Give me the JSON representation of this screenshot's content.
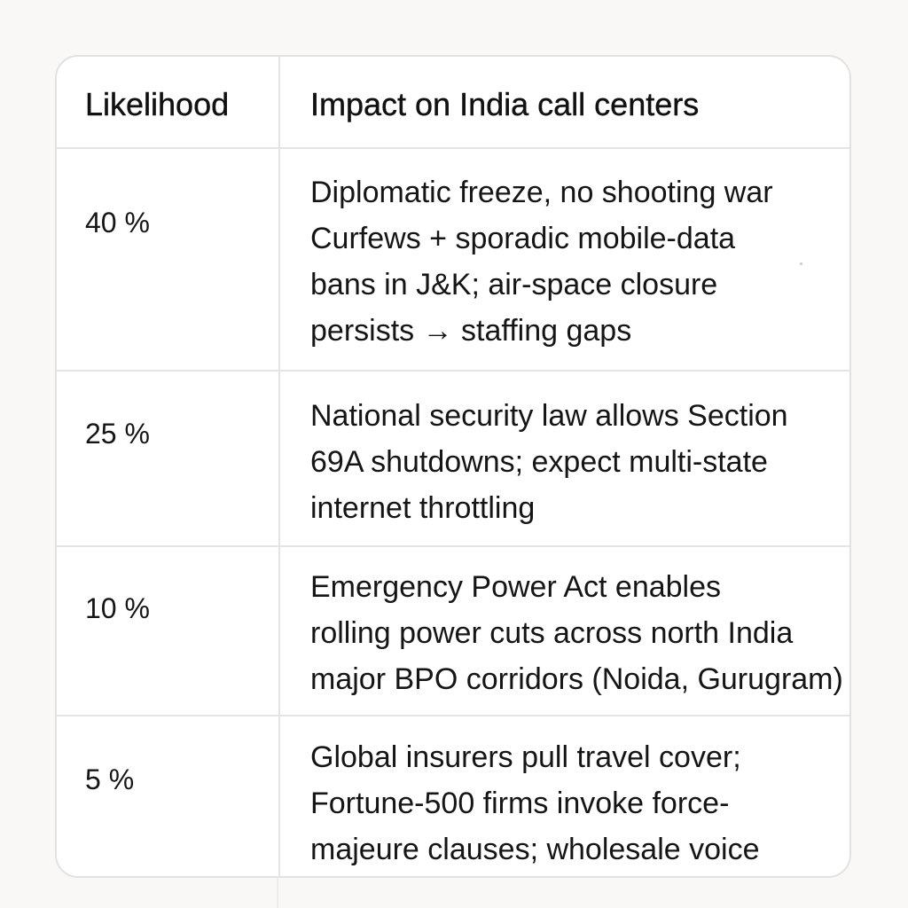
{
  "table": {
    "headers": {
      "likelihood": "Likelihood",
      "impact": "Impact on India call centers"
    },
    "rows": [
      {
        "likelihood": "40 %",
        "impact_lines": [
          "Diplomatic freeze, no shooting war",
          "Curfews + sporadic mobile-data",
          "bans in J&K; air-space closure",
          "persists → staffing gaps"
        ]
      },
      {
        "likelihood": "25 %",
        "impact_lines": [
          "National security law allows Section",
          "69A shutdowns; expect multi-state",
          "internet throttling"
        ]
      },
      {
        "likelihood": "10 %",
        "impact_lines": [
          "Emergency Power Act enables",
          "rolling power cuts across north India",
          "major BPO corridors (Noida, Gurugram)"
        ]
      },
      {
        "likelihood": "5 %",
        "impact_lines": [
          "Global insurers pull travel cover;",
          "Fortune-500 firms invoke force-",
          "majeure clauses; wholesale voice"
        ]
      }
    ]
  }
}
